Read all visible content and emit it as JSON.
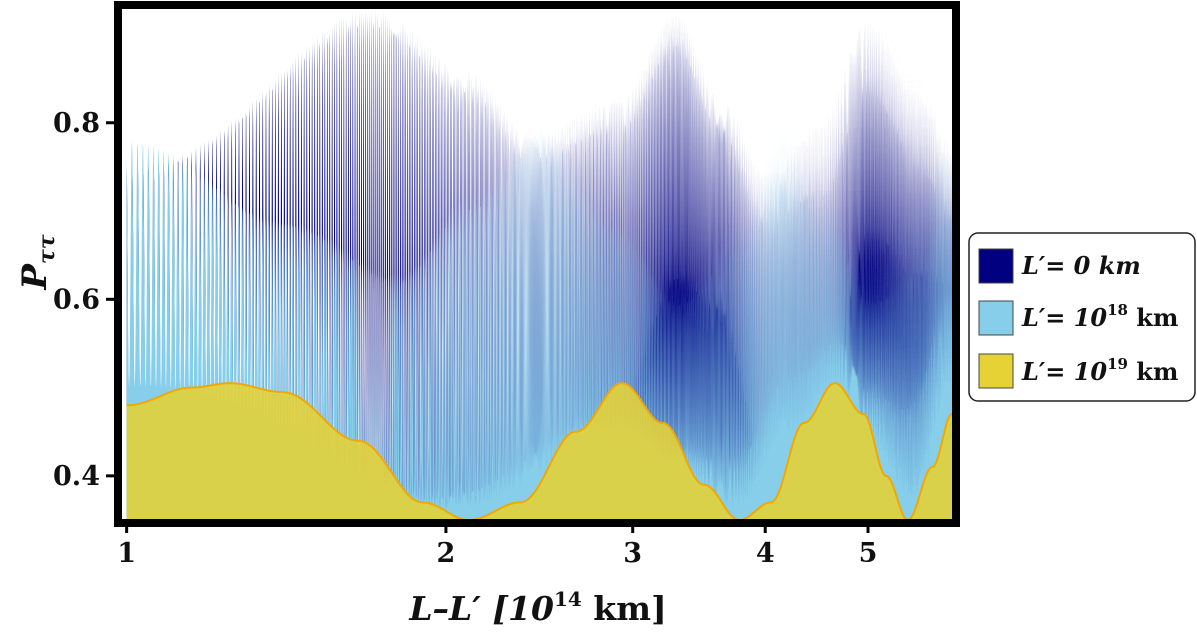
{
  "chart_data": {
    "type": "area",
    "title": "",
    "xlabel": {
      "main": "L–L′ [10",
      "exp": "14",
      "unit": " km]"
    },
    "ylabel": {
      "main": "P",
      "sub": "ττ"
    },
    "x_scale": "log",
    "xlim": [
      0.99,
      6.0
    ],
    "ylim": [
      0.35,
      0.93
    ],
    "x_ticks": [
      1,
      2,
      3,
      4,
      5
    ],
    "x_tick_labels": [
      "1",
      "2",
      "3",
      "4",
      "5"
    ],
    "y_ticks": [
      0.4,
      0.6,
      0.8
    ],
    "y_tick_labels": [
      "0.4",
      "0.6",
      "0.8"
    ],
    "grid": false,
    "legend": {
      "placement": "right-outside"
    },
    "series": [
      {
        "name": {
          "pre": "L′= 0 km",
          "exp": "",
          "post": ""
        },
        "color": "#000080",
        "oscillation": "fast",
        "upper_envelope": {
          "x": [
            1.0,
            1.7,
            2.1,
            2.4,
            2.9,
            3.3,
            3.6,
            4.0,
            4.5,
            5.0,
            5.6,
            6.0
          ],
          "y": [
            0.75,
            0.93,
            0.86,
            0.79,
            0.83,
            0.93,
            0.84,
            0.76,
            0.82,
            0.93,
            0.86,
            0.79
          ]
        },
        "lower_envelope": {
          "x": [
            1.0,
            1.7,
            2.1,
            2.4,
            2.9,
            3.3,
            3.6,
            4.0,
            4.5,
            5.0,
            5.6,
            6.0
          ],
          "y": [
            0.35,
            0.35,
            0.35,
            0.35,
            0.44,
            0.58,
            0.55,
            0.35,
            0.35,
            0.58,
            0.52,
            0.52
          ]
        }
      },
      {
        "name": {
          "pre": "L′= 10",
          "exp": "18",
          "post": " km"
        },
        "color": "#87ceeb",
        "oscillation": "fast",
        "upper_envelope": {
          "x": [
            1.0,
            1.4,
            1.8,
            2.1,
            2.45,
            2.9,
            3.3,
            3.8,
            4.15,
            4.6,
            5.0,
            5.6,
            5.85,
            6.0
          ],
          "y": [
            0.78,
            0.69,
            0.63,
            0.72,
            0.8,
            0.7,
            0.62,
            0.71,
            0.8,
            0.73,
            0.65,
            0.75,
            0.8,
            0.79
          ]
        },
        "lower_envelope": {
          "x": [
            1.0,
            2.0,
            2.9,
            3.3,
            3.75,
            4.2,
            4.7,
            5.0,
            5.5,
            6.0
          ],
          "y": [
            0.5,
            0.36,
            0.44,
            0.4,
            0.36,
            0.44,
            0.5,
            0.44,
            0.36,
            0.5
          ]
        }
      },
      {
        "name": {
          "pre": "L′= 10",
          "exp": "19",
          "post": "  km"
        },
        "color": "#e6d234",
        "oscillation": "slow",
        "curve": {
          "x": [
            1.0,
            1.15,
            1.25,
            1.4,
            1.65,
            1.9,
            2.1,
            2.35,
            2.65,
            2.93,
            3.2,
            3.5,
            3.78,
            4.05,
            4.35,
            4.65,
            4.95,
            5.2,
            5.45,
            5.75,
            6.0
          ],
          "y": [
            0.48,
            0.5,
            0.505,
            0.495,
            0.44,
            0.37,
            0.35,
            0.37,
            0.45,
            0.505,
            0.46,
            0.39,
            0.35,
            0.37,
            0.46,
            0.505,
            0.47,
            0.4,
            0.35,
            0.41,
            0.47
          ]
        }
      }
    ]
  }
}
